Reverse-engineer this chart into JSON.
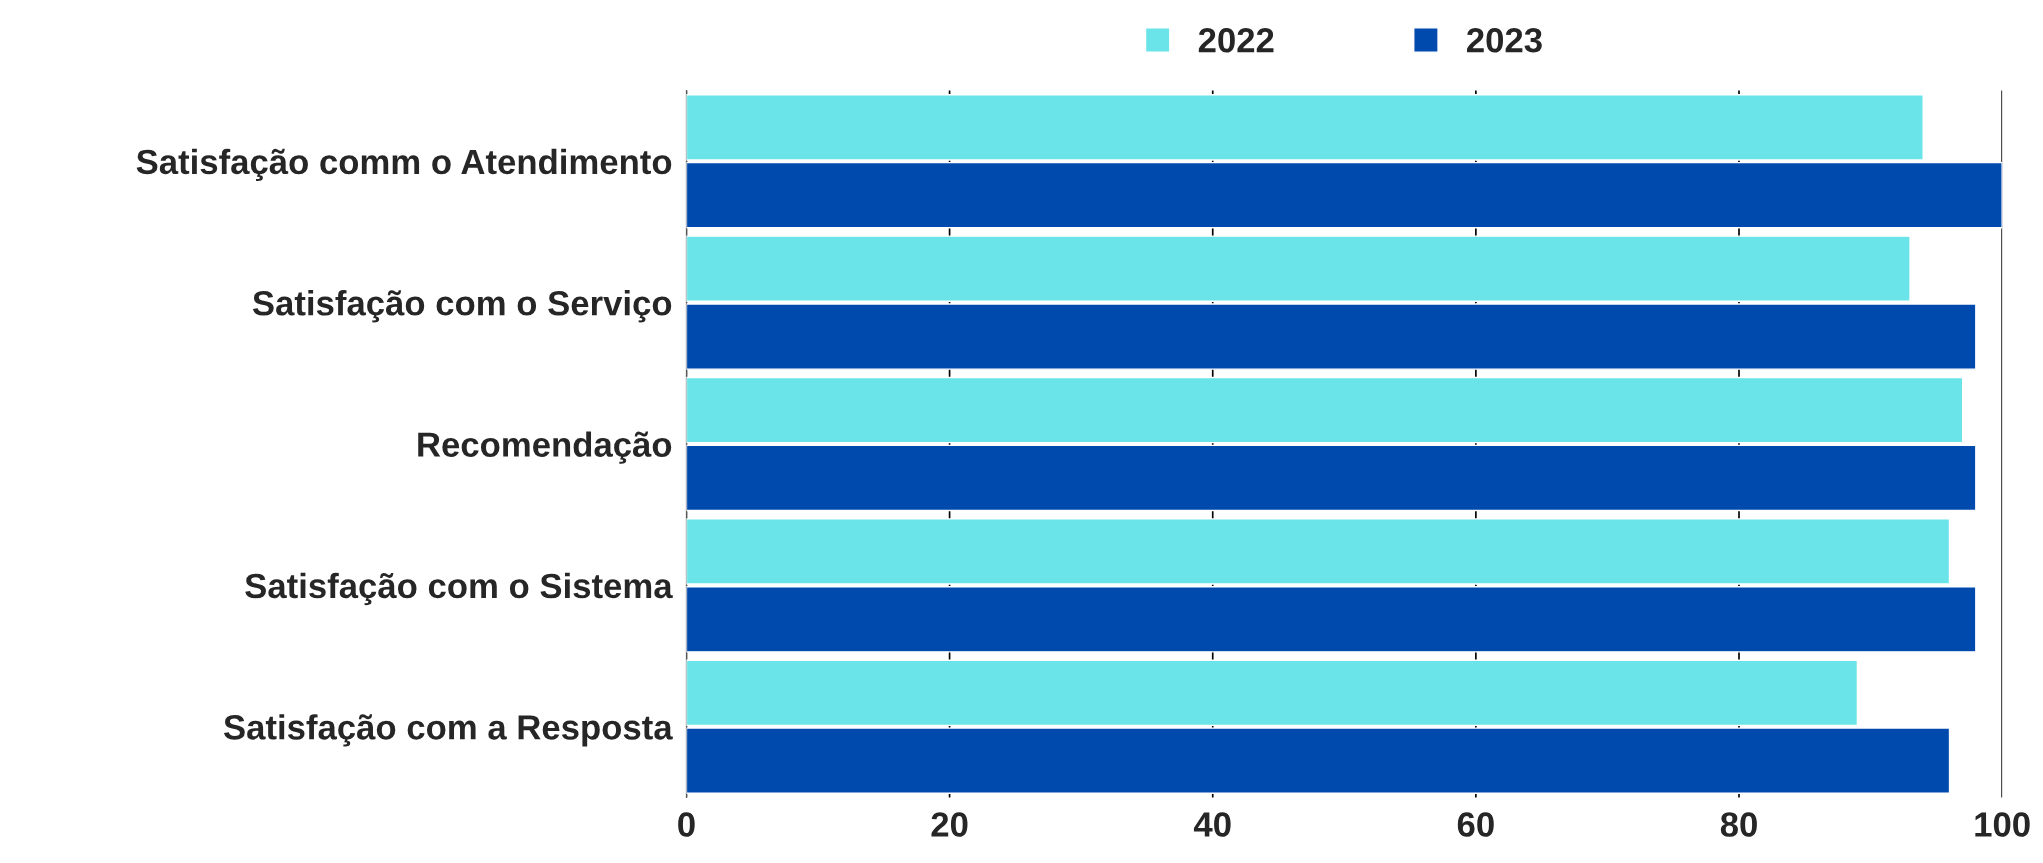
{
  "chart_data": {
    "type": "bar",
    "orientation": "horizontal",
    "categories": [
      "Satisfação comm o Atendimento",
      "Satisfação com o Serviço",
      "Recomendação",
      "Satisfação com o Sistema",
      "Satisfação com a Resposta"
    ],
    "series": [
      {
        "name": "2022",
        "color": "#6ae4e9",
        "values": [
          94,
          93,
          97,
          96,
          89
        ]
      },
      {
        "name": "2023",
        "color": "#004aad",
        "values": [
          100,
          98,
          98,
          98,
          96
        ]
      }
    ],
    "xlim": [
      0,
      100
    ],
    "xticks": [
      0,
      20,
      40,
      60,
      80,
      100
    ],
    "grid": "x",
    "legend": "top"
  }
}
